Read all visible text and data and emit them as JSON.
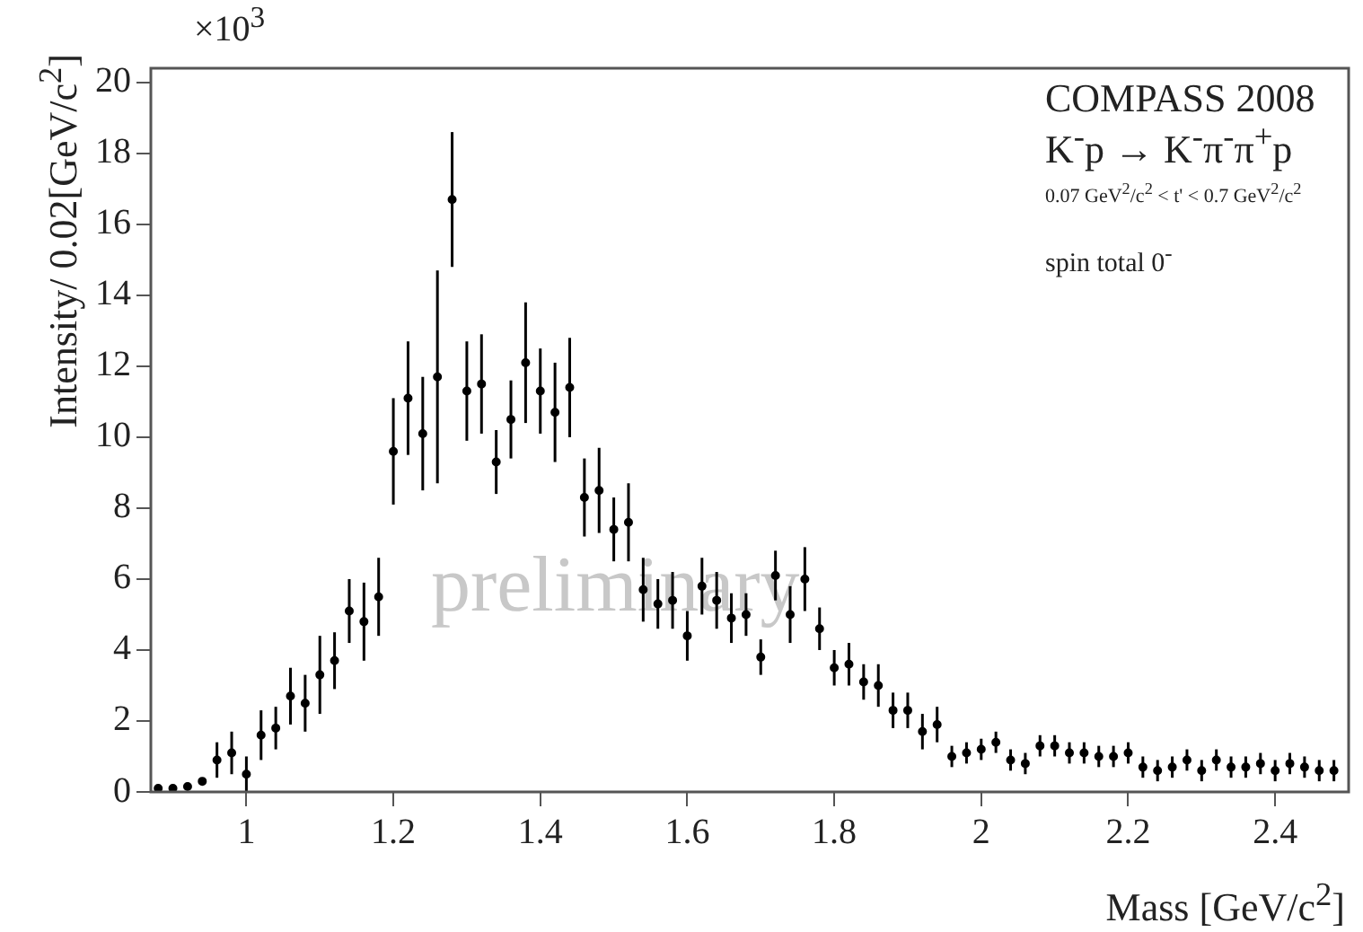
{
  "chart_data": {
    "type": "scatter",
    "xlabel": "Mass [GeV/c$^{2}$]",
    "ylabel": "Intensity/ 0.02[GeV/c$^{2}$]",
    "annotations": [
      "×10$^{3}$",
      "COMPASS 2008",
      "K$^{-}$p → K$^{-}$π$^{-}$π$^{+}$p",
      "0.07 GeV$^{2}$/c$^{2}$ < t' < 0.7 GeV$^{2}$/c$^{2}$",
      "spin total 0$^{-}$",
      "preliminary"
    ],
    "xlim": [
      0.87,
      2.5
    ],
    "xticks": [
      1,
      1.2,
      1.4,
      1.6,
      1.8,
      2,
      2.2,
      2.4
    ],
    "ylim": [
      0,
      20.4
    ],
    "yticks": [
      0,
      2,
      4,
      6,
      8,
      10,
      12,
      14,
      16,
      18,
      20
    ],
    "grid": false,
    "legend": false,
    "marker": "circle",
    "x": [
      0.88,
      0.9,
      0.92,
      0.94,
      0.96,
      0.98,
      1.0,
      1.02,
      1.04,
      1.06,
      1.08,
      1.1,
      1.12,
      1.14,
      1.16,
      1.18,
      1.2,
      1.22,
      1.24,
      1.26,
      1.28,
      1.3,
      1.32,
      1.34,
      1.36,
      1.38,
      1.4,
      1.42,
      1.44,
      1.46,
      1.48,
      1.5,
      1.52,
      1.54,
      1.56,
      1.58,
      1.6,
      1.62,
      1.64,
      1.66,
      1.68,
      1.7,
      1.72,
      1.74,
      1.76,
      1.78,
      1.8,
      1.82,
      1.84,
      1.86,
      1.88,
      1.9,
      1.92,
      1.94,
      1.96,
      1.98,
      2.0,
      2.02,
      2.04,
      2.06,
      2.08,
      2.1,
      2.12,
      2.14,
      2.16,
      2.18,
      2.2,
      2.22,
      2.24,
      2.26,
      2.28,
      2.3,
      2.32,
      2.34,
      2.36,
      2.38,
      2.4,
      2.42,
      2.44,
      2.46,
      2.48
    ],
    "series": [
      {
        "color": "#000000",
        "values": [
          0.1,
          0.1,
          0.15,
          0.3,
          0.9,
          1.1,
          0.5,
          1.6,
          1.8,
          2.7,
          2.5,
          3.3,
          3.7,
          5.1,
          4.8,
          5.5,
          9.6,
          11.1,
          10.1,
          11.7,
          16.7,
          11.3,
          11.5,
          9.3,
          10.5,
          12.1,
          11.3,
          10.7,
          11.4,
          8.3,
          8.5,
          7.4,
          7.6,
          5.7,
          5.3,
          5.4,
          4.4,
          5.8,
          5.4,
          4.9,
          5.0,
          3.8,
          6.1,
          5.0,
          6.0,
          4.6,
          3.5,
          3.6,
          3.1,
          3.0,
          2.3,
          2.3,
          1.7,
          1.9,
          1.0,
          1.1,
          1.2,
          1.4,
          0.9,
          0.8,
          1.3,
          1.3,
          1.1,
          1.1,
          1.0,
          1.0,
          1.1,
          0.7,
          0.6,
          0.7,
          0.9,
          0.6,
          0.9,
          0.7,
          0.7,
          0.8,
          0.6,
          0.8,
          0.7,
          0.6,
          0.6
        ],
        "errors": [
          null,
          null,
          null,
          null,
          0.5,
          0.6,
          0.5,
          0.7,
          0.6,
          0.8,
          0.8,
          1.1,
          0.8,
          0.9,
          1.1,
          1.1,
          1.5,
          1.6,
          1.6,
          3.0,
          1.9,
          1.4,
          1.4,
          0.9,
          1.1,
          1.7,
          1.2,
          1.4,
          1.4,
          1.1,
          1.2,
          0.9,
          1.1,
          0.9,
          0.7,
          0.8,
          0.7,
          0.8,
          0.8,
          0.7,
          0.6,
          0.5,
          0.7,
          0.8,
          0.9,
          0.6,
          0.5,
          0.6,
          0.5,
          0.6,
          0.5,
          0.5,
          0.5,
          0.5,
          0.3,
          0.3,
          0.3,
          0.3,
          0.3,
          0.3,
          0.3,
          0.3,
          0.3,
          0.3,
          0.3,
          0.3,
          0.3,
          0.3,
          0.3,
          0.3,
          0.3,
          0.3,
          0.3,
          0.3,
          0.3,
          0.3,
          0.3,
          0.3,
          0.3,
          0.3,
          0.3
        ]
      }
    ]
  }
}
